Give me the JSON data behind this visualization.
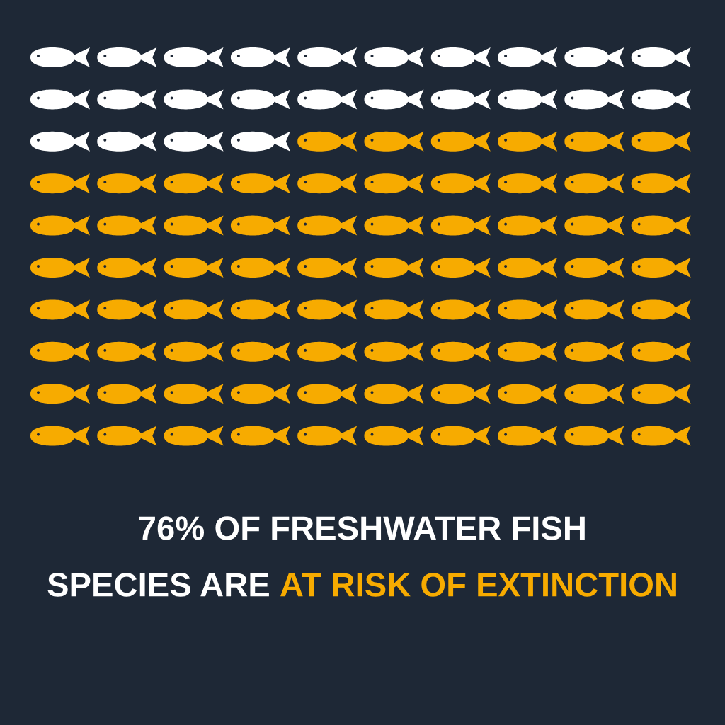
{
  "chart_data": {
    "type": "other",
    "title": "OF FRESHWATER FISH SPECIES ARE",
    "value_labels": [
      "76%"
    ],
    "subtitle": "AT RISK OF EXTINCTION",
    "values": [
      76
    ],
    "color": "#f7ab00"
  }
}
